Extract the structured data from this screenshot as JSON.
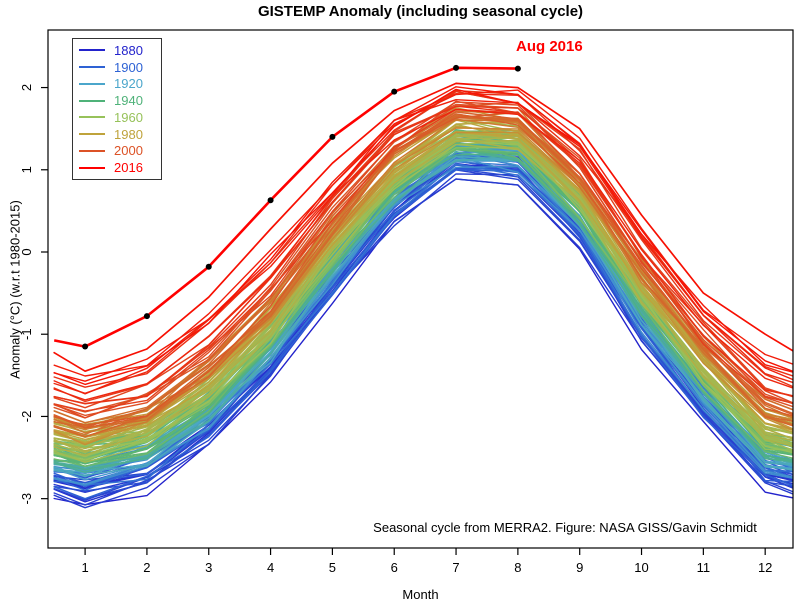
{
  "chart_data": {
    "type": "line",
    "title": "GISTEMP Anomaly (including seasonal cycle)",
    "xlabel": "Month",
    "ylabel": "Anomaly (°C) (w.r.t 1980-2015)",
    "annotation": "Aug 2016",
    "annotation_color": "#FF0000",
    "credit": "Seasonal cycle from MERRA2. Figure: NASA GISS/Gavin Schmidt",
    "x": [
      1,
      2,
      3,
      4,
      5,
      6,
      7,
      8,
      9,
      10,
      11,
      12
    ],
    "x_ticks": [
      1,
      2,
      3,
      4,
      5,
      6,
      7,
      8,
      9,
      10,
      11,
      12
    ],
    "y_ticks": [
      -3,
      -2,
      -1,
      0,
      1,
      2
    ],
    "xlim": [
      0.4,
      12.45
    ],
    "ylim": [
      -3.6,
      2.7
    ],
    "grid": false,
    "legend_position": "top-left",
    "years_range": [
      1880,
      2016
    ],
    "note": "one line per year 1880-2016, colored by year; values estimated from plot",
    "anchor_series": [
      {
        "year": 1880,
        "values": [
          -3.0,
          -2.8,
          -2.25,
          -1.5,
          -0.5,
          0.42,
          1.0,
          0.95,
          0.15,
          -1.05,
          -2.0,
          -2.8
        ]
      },
      {
        "year": 1900,
        "values": [
          -2.82,
          -2.62,
          -2.1,
          -1.35,
          -0.35,
          0.55,
          1.1,
          1.05,
          0.28,
          -0.9,
          -1.85,
          -2.65
        ]
      },
      {
        "year": 1920,
        "values": [
          -2.65,
          -2.48,
          -1.95,
          -1.2,
          -0.2,
          0.68,
          1.22,
          1.17,
          0.42,
          -0.75,
          -1.7,
          -2.5
        ]
      },
      {
        "year": 1940,
        "values": [
          -2.5,
          -2.32,
          -1.8,
          -1.05,
          -0.05,
          0.82,
          1.35,
          1.3,
          0.55,
          -0.6,
          -1.55,
          -2.35
        ]
      },
      {
        "year": 1960,
        "values": [
          -2.4,
          -2.2,
          -1.68,
          -0.95,
          0.05,
          0.9,
          1.42,
          1.37,
          0.62,
          -0.5,
          -1.45,
          -2.25
        ]
      },
      {
        "year": 1980,
        "values": [
          -2.25,
          -2.05,
          -1.5,
          -0.78,
          0.22,
          1.05,
          1.55,
          1.5,
          0.77,
          -0.33,
          -1.28,
          -2.05
        ]
      },
      {
        "year": 2000,
        "values": [
          -2.0,
          -1.8,
          -1.25,
          -0.5,
          0.5,
          1.35,
          1.8,
          1.75,
          1.05,
          -0.08,
          -1.0,
          -1.75
        ]
      },
      {
        "year": 2014,
        "values": [
          -1.62,
          -1.42,
          -0.82,
          -0.08,
          0.78,
          1.52,
          1.88,
          1.82,
          1.25,
          0.2,
          -0.8,
          -1.38
        ]
      }
    ],
    "series_2015": {
      "year": 2015,
      "values": [
        -1.45,
        -1.18,
        -0.55,
        0.28,
        1.08,
        1.72,
        2.05,
        2.0,
        1.5,
        0.45,
        -0.5,
        -1.0
      ]
    },
    "series_2016": {
      "year": 2016,
      "values": [
        -1.15,
        -0.78,
        -0.18,
        0.63,
        1.4,
        1.95,
        2.24,
        2.23
      ]
    },
    "highlight": {
      "year": 2016,
      "color": "#FF0000",
      "marker_color": "#000000",
      "last_month": 8
    },
    "color_stops": [
      {
        "year": 1880,
        "color": "#2323CC"
      },
      {
        "year": 1900,
        "color": "#2E62D4"
      },
      {
        "year": 1920,
        "color": "#4BA6CB"
      },
      {
        "year": 1940,
        "color": "#4FB279"
      },
      {
        "year": 1960,
        "color": "#97C25A"
      },
      {
        "year": 1980,
        "color": "#BFA33B"
      },
      {
        "year": 2000,
        "color": "#DC5226"
      },
      {
        "year": 2016,
        "color": "#F90B00"
      }
    ],
    "legend": {
      "entries": [
        {
          "label": "1880",
          "color": "#2323CC"
        },
        {
          "label": "1900",
          "color": "#2E62D4"
        },
        {
          "label": "1920",
          "color": "#4BA6CB"
        },
        {
          "label": "1940",
          "color": "#4FB279"
        },
        {
          "label": "1960",
          "color": "#97C25A"
        },
        {
          "label": "1980",
          "color": "#BFA33B"
        },
        {
          "label": "2000",
          "color": "#DC5226"
        },
        {
          "label": "2016",
          "color": "#FF0000"
        }
      ]
    }
  }
}
